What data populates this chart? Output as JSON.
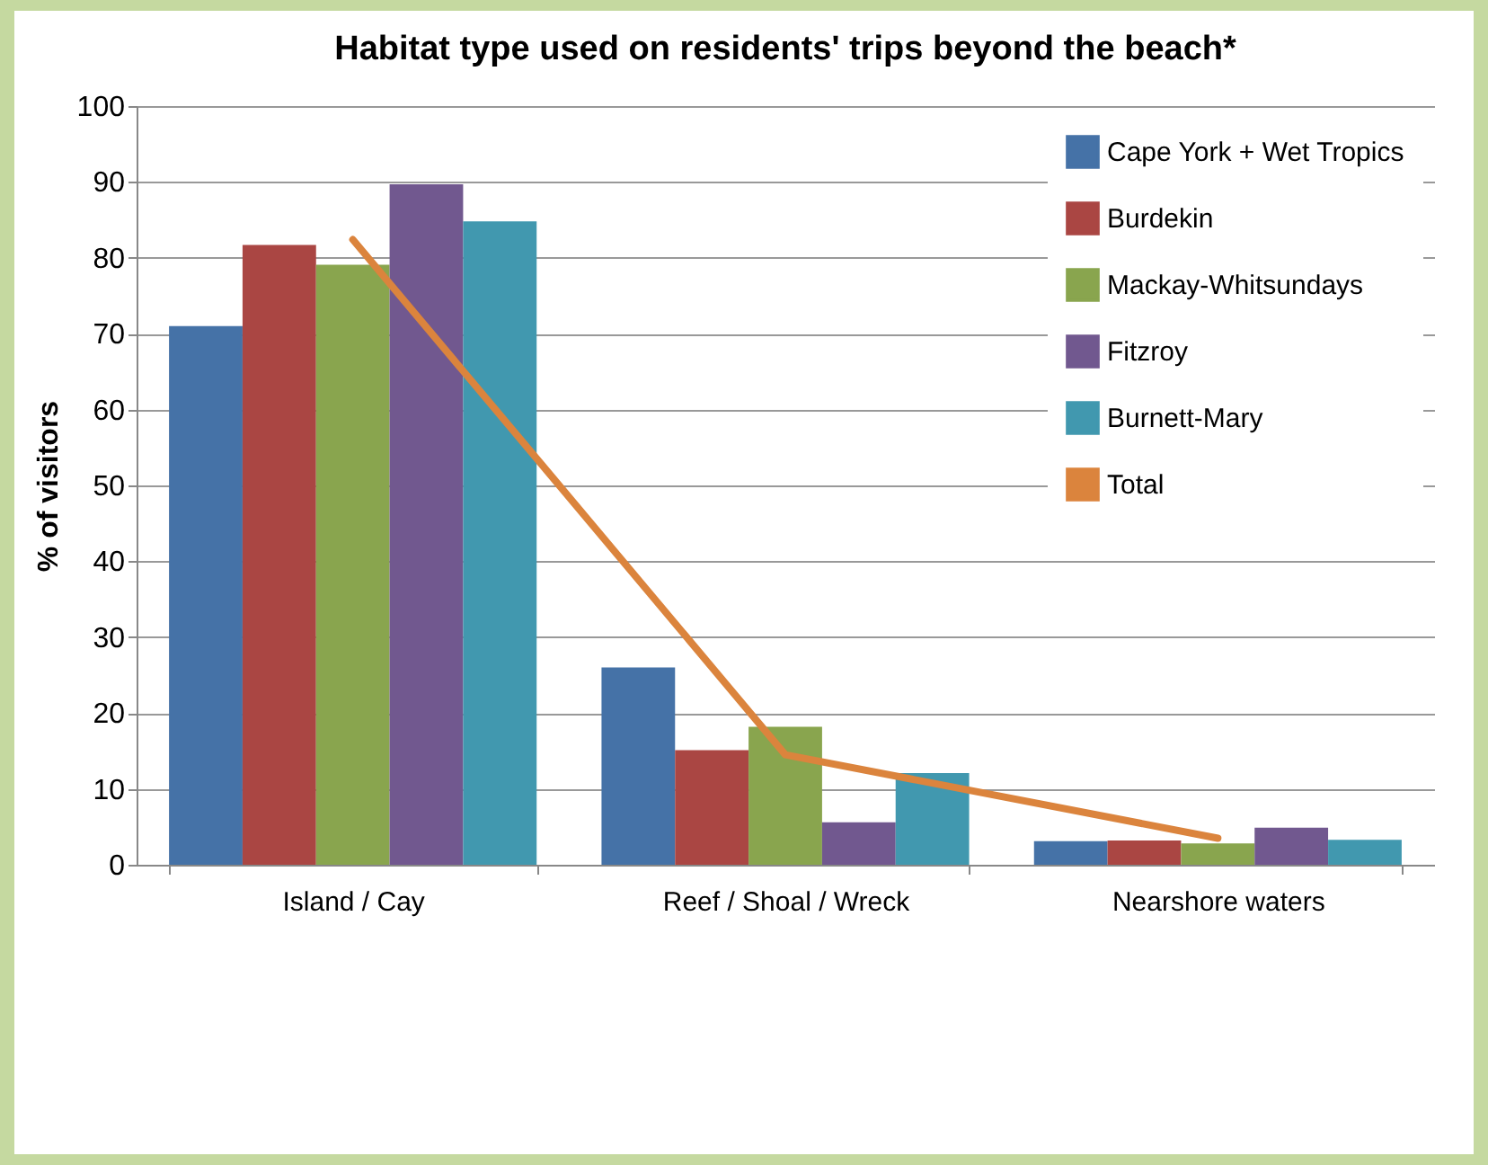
{
  "chart_data": {
    "type": "bar",
    "title": "Habitat type used on residents' trips beyond the beach*",
    "ylabel": "% of visitors",
    "categories": [
      "Island / Cay",
      "Reef / Shoal /  Wreck",
      "Nearshore waters"
    ],
    "series": [
      {
        "name": "Cape York + Wet Tropics",
        "color": "#4572a7",
        "values": [
          71,
          26,
          3.1
        ]
      },
      {
        "name": "Burdekin",
        "color": "#aa4643",
        "values": [
          81.7,
          15.1,
          3.2
        ]
      },
      {
        "name": "Mackay-Whitsundays",
        "color": "#89a54e",
        "values": [
          79.1,
          18.2,
          2.8
        ]
      },
      {
        "name": "Fitzroy",
        "color": "#71588f",
        "values": [
          89.7,
          5.6,
          4.9
        ]
      },
      {
        "name": "Burnett-Mary",
        "color": "#4198af",
        "values": [
          84.8,
          12.1,
          3.3
        ]
      },
      {
        "name": "Total",
        "type": "line",
        "color": "#db843d",
        "values": [
          82.4,
          14.5,
          3.5
        ]
      }
    ],
    "ylim": [
      0,
      100
    ],
    "yticks": [
      0,
      10,
      20,
      30,
      40,
      50,
      60,
      70,
      80,
      90,
      100
    ],
    "grid": "y",
    "legend": "top right"
  }
}
